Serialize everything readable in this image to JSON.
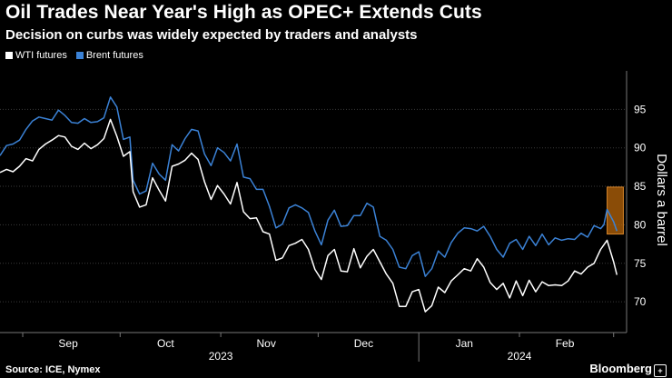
{
  "title": "Oil Trades Near Year's High as OPEC+ Extends Cuts",
  "subtitle": "Decision on curbs was widely expected by traders and analysts",
  "source": "Source: ICE, Nymex",
  "brand": "Bloomberg",
  "brand_mark": "+",
  "colors": {
    "wti": "#ffffff",
    "brent": "#3b82d6",
    "highlight": "#b8650a",
    "grid": "#3a3a3a"
  },
  "chart_data": {
    "type": "line",
    "title": "Oil Trades Near Year's High as OPEC+ Extends Cuts",
    "ylabel": "Dollars a barrel",
    "ylim": [
      66,
      100
    ],
    "xlim": [
      "2023-08-25",
      "2024-03-05"
    ],
    "y_ticks": [
      70,
      75,
      80,
      85,
      90,
      95
    ],
    "x_ticks": [
      {
        "label": "Sep",
        "date": "2023-09-15"
      },
      {
        "label": "Oct",
        "date": "2023-10-15"
      },
      {
        "label": "Nov",
        "date": "2023-11-15"
      },
      {
        "label": "Dec",
        "date": "2023-12-15"
      },
      {
        "label": "Jan",
        "date": "2024-01-15"
      },
      {
        "label": "Feb",
        "date": "2024-02-15"
      }
    ],
    "year_labels": [
      {
        "label": "2023",
        "date": "2023-11-01"
      },
      {
        "label": "2024",
        "date": "2024-02-01"
      }
    ],
    "year_separators": [
      "2024-01-01"
    ],
    "grid": true,
    "legend_position": "top-left",
    "highlight": {
      "date_from": "2024-02-28",
      "date_to": "2024-03-04",
      "y_from": 78.8,
      "y_to": 84.9
    },
    "series": [
      {
        "name": "WTI futures",
        "key": "wti",
        "points": [
          [
            "2023-08-25",
            86.8
          ],
          [
            "2023-08-27",
            87.2
          ],
          [
            "2023-08-29",
            86.9
          ],
          [
            "2023-08-31",
            87.6
          ],
          [
            "2023-09-02",
            88.6
          ],
          [
            "2023-09-04",
            88.3
          ],
          [
            "2023-09-06",
            89.8
          ],
          [
            "2023-09-08",
            90.5
          ],
          [
            "2023-09-10",
            91.0
          ],
          [
            "2023-09-12",
            91.6
          ],
          [
            "2023-09-14",
            91.4
          ],
          [
            "2023-09-16",
            90.2
          ],
          [
            "2023-09-18",
            89.8
          ],
          [
            "2023-09-20",
            90.6
          ],
          [
            "2023-09-22",
            89.9
          ],
          [
            "2023-09-24",
            90.4
          ],
          [
            "2023-09-26",
            91.2
          ],
          [
            "2023-09-28",
            93.7
          ],
          [
            "2023-09-30",
            91.5
          ],
          [
            "2023-10-02",
            88.9
          ],
          [
            "2023-10-04",
            89.5
          ],
          [
            "2023-10-05",
            84.3
          ],
          [
            "2023-10-07",
            82.3
          ],
          [
            "2023-10-09",
            82.6
          ],
          [
            "2023-10-11",
            86.1
          ],
          [
            "2023-10-13",
            84.5
          ],
          [
            "2023-10-15",
            83.1
          ],
          [
            "2023-10-17",
            87.6
          ],
          [
            "2023-10-19",
            87.9
          ],
          [
            "2023-10-21",
            88.4
          ],
          [
            "2023-10-23",
            89.3
          ],
          [
            "2023-10-25",
            88.5
          ],
          [
            "2023-10-27",
            85.6
          ],
          [
            "2023-10-29",
            83.3
          ],
          [
            "2023-10-31",
            85.1
          ],
          [
            "2023-11-02",
            84.0
          ],
          [
            "2023-11-04",
            82.7
          ],
          [
            "2023-11-06",
            85.5
          ],
          [
            "2023-11-08",
            81.7
          ],
          [
            "2023-11-10",
            80.8
          ],
          [
            "2023-11-12",
            80.9
          ],
          [
            "2023-11-14",
            79.1
          ],
          [
            "2023-11-16",
            78.8
          ],
          [
            "2023-11-18",
            75.4
          ],
          [
            "2023-11-20",
            75.7
          ],
          [
            "2023-11-22",
            77.3
          ],
          [
            "2023-11-24",
            77.6
          ],
          [
            "2023-11-26",
            78.1
          ],
          [
            "2023-11-28",
            76.8
          ],
          [
            "2023-11-30",
            74.2
          ],
          [
            "2023-12-02",
            72.9
          ],
          [
            "2023-12-04",
            76.0
          ],
          [
            "2023-12-06",
            76.8
          ],
          [
            "2023-12-08",
            74.0
          ],
          [
            "2023-12-10",
            73.9
          ],
          [
            "2023-12-12",
            76.9
          ],
          [
            "2023-12-14",
            74.4
          ],
          [
            "2023-12-16",
            75.9
          ],
          [
            "2023-12-18",
            76.8
          ],
          [
            "2023-12-20",
            75.2
          ],
          [
            "2023-12-22",
            73.6
          ],
          [
            "2023-12-24",
            72.4
          ],
          [
            "2023-12-26",
            69.4
          ],
          [
            "2023-12-28",
            69.4
          ],
          [
            "2023-12-30",
            71.3
          ],
          [
            "2024-01-01",
            71.6
          ],
          [
            "2024-01-03",
            68.7
          ],
          [
            "2024-01-05",
            69.5
          ],
          [
            "2024-01-07",
            71.9
          ],
          [
            "2024-01-09",
            71.2
          ],
          [
            "2024-01-11",
            72.7
          ],
          [
            "2024-01-13",
            73.5
          ],
          [
            "2024-01-15",
            74.3
          ],
          [
            "2024-01-17",
            74.0
          ],
          [
            "2024-01-19",
            75.6
          ],
          [
            "2024-01-21",
            74.5
          ],
          [
            "2024-01-23",
            72.5
          ],
          [
            "2024-01-25",
            71.6
          ],
          [
            "2024-01-27",
            72.4
          ],
          [
            "2024-01-29",
            70.5
          ],
          [
            "2024-01-31",
            72.7
          ],
          [
            "2024-02-02",
            70.8
          ],
          [
            "2024-02-04",
            72.8
          ],
          [
            "2024-02-06",
            71.3
          ],
          [
            "2024-02-08",
            72.6
          ],
          [
            "2024-02-10",
            72.1
          ],
          [
            "2024-02-12",
            72.2
          ],
          [
            "2024-02-14",
            72.1
          ],
          [
            "2024-02-16",
            72.7
          ],
          [
            "2024-02-18",
            74.0
          ],
          [
            "2024-02-20",
            73.6
          ],
          [
            "2024-02-22",
            74.5
          ],
          [
            "2024-02-24",
            75.0
          ],
          [
            "2024-02-26",
            76.8
          ],
          [
            "2024-02-27",
            77.4
          ],
          [
            "2024-02-28",
            78.0
          ],
          [
            "2024-03-01",
            75.2
          ],
          [
            "2024-03-02",
            73.5
          ]
        ]
      },
      {
        "name": "Brent futures",
        "key": "brent",
        "points": [
          [
            "2023-08-25",
            89.0
          ],
          [
            "2023-08-27",
            90.3
          ],
          [
            "2023-08-29",
            90.5
          ],
          [
            "2023-08-31",
            91.0
          ],
          [
            "2023-09-02",
            92.4
          ],
          [
            "2023-09-04",
            93.5
          ],
          [
            "2023-09-06",
            94.0
          ],
          [
            "2023-09-08",
            93.8
          ],
          [
            "2023-09-10",
            93.6
          ],
          [
            "2023-09-12",
            94.9
          ],
          [
            "2023-09-14",
            94.2
          ],
          [
            "2023-09-16",
            93.3
          ],
          [
            "2023-09-18",
            93.2
          ],
          [
            "2023-09-20",
            93.8
          ],
          [
            "2023-09-22",
            93.3
          ],
          [
            "2023-09-24",
            93.4
          ],
          [
            "2023-09-26",
            93.9
          ],
          [
            "2023-09-28",
            96.6
          ],
          [
            "2023-09-30",
            95.3
          ],
          [
            "2023-10-02",
            91.1
          ],
          [
            "2023-10-04",
            91.4
          ],
          [
            "2023-10-05",
            85.8
          ],
          [
            "2023-10-07",
            84.0
          ],
          [
            "2023-10-09",
            84.4
          ],
          [
            "2023-10-11",
            88.0
          ],
          [
            "2023-10-13",
            86.6
          ],
          [
            "2023-10-15",
            85.8
          ],
          [
            "2023-10-17",
            90.4
          ],
          [
            "2023-10-19",
            89.6
          ],
          [
            "2023-10-21",
            91.2
          ],
          [
            "2023-10-23",
            92.4
          ],
          [
            "2023-10-25",
            92.2
          ],
          [
            "2023-10-27",
            89.2
          ],
          [
            "2023-10-29",
            87.7
          ],
          [
            "2023-10-31",
            90.0
          ],
          [
            "2023-11-02",
            89.4
          ],
          [
            "2023-11-04",
            88.3
          ],
          [
            "2023-11-06",
            90.5
          ],
          [
            "2023-11-08",
            86.2
          ],
          [
            "2023-11-10",
            86.0
          ],
          [
            "2023-11-12",
            84.6
          ],
          [
            "2023-11-14",
            84.6
          ],
          [
            "2023-11-16",
            82.4
          ],
          [
            "2023-11-18",
            79.6
          ],
          [
            "2023-11-20",
            80.1
          ],
          [
            "2023-11-22",
            82.2
          ],
          [
            "2023-11-24",
            82.6
          ],
          [
            "2023-11-26",
            82.2
          ],
          [
            "2023-11-28",
            81.6
          ],
          [
            "2023-11-30",
            79.2
          ],
          [
            "2023-12-02",
            77.4
          ],
          [
            "2023-12-04",
            80.6
          ],
          [
            "2023-12-06",
            81.9
          ],
          [
            "2023-12-08",
            79.8
          ],
          [
            "2023-12-10",
            79.9
          ],
          [
            "2023-12-12",
            81.2
          ],
          [
            "2023-12-14",
            81.2
          ],
          [
            "2023-12-16",
            82.8
          ],
          [
            "2023-12-18",
            82.3
          ],
          [
            "2023-12-20",
            78.5
          ],
          [
            "2023-12-22",
            78.0
          ],
          [
            "2023-12-24",
            76.8
          ],
          [
            "2023-12-26",
            74.5
          ],
          [
            "2023-12-28",
            74.3
          ],
          [
            "2023-12-30",
            76.0
          ],
          [
            "2024-01-01",
            76.5
          ],
          [
            "2024-01-03",
            73.3
          ],
          [
            "2024-01-05",
            74.3
          ],
          [
            "2024-01-07",
            76.6
          ],
          [
            "2024-01-09",
            75.8
          ],
          [
            "2024-01-11",
            77.7
          ],
          [
            "2024-01-13",
            78.9
          ],
          [
            "2024-01-15",
            79.6
          ],
          [
            "2024-01-17",
            79.5
          ],
          [
            "2024-01-19",
            79.2
          ],
          [
            "2024-01-21",
            79.8
          ],
          [
            "2024-01-23",
            78.5
          ],
          [
            "2024-01-25",
            76.8
          ],
          [
            "2024-01-27",
            75.8
          ],
          [
            "2024-01-29",
            77.6
          ],
          [
            "2024-01-31",
            78.1
          ],
          [
            "2024-02-02",
            76.8
          ],
          [
            "2024-02-04",
            78.5
          ],
          [
            "2024-02-06",
            77.3
          ],
          [
            "2024-02-08",
            78.8
          ],
          [
            "2024-02-10",
            77.4
          ],
          [
            "2024-02-12",
            78.3
          ],
          [
            "2024-02-14",
            78.0
          ],
          [
            "2024-02-16",
            78.2
          ],
          [
            "2024-02-18",
            78.1
          ],
          [
            "2024-02-20",
            78.9
          ],
          [
            "2024-02-22",
            78.4
          ],
          [
            "2024-02-24",
            79.9
          ],
          [
            "2024-02-26",
            79.5
          ],
          [
            "2024-02-27",
            80.0
          ],
          [
            "2024-02-28",
            82.0
          ],
          [
            "2024-03-01",
            80.4
          ],
          [
            "2024-03-02",
            79.2
          ]
        ]
      }
    ]
  }
}
